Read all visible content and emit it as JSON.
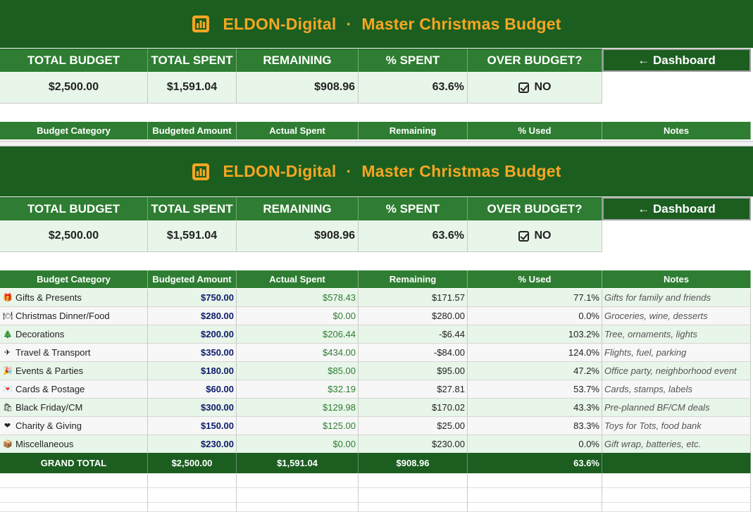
{
  "title": {
    "company": "ELDON-Digital",
    "separator": "·",
    "name": "Master Christmas Budget"
  },
  "kpi": {
    "headers": [
      "TOTAL BUDGET",
      "TOTAL SPENT",
      "REMAINING",
      "% SPENT",
      "OVER BUDGET?"
    ],
    "dashboard_label": "← Dashboard",
    "values": {
      "total_budget": "$2,500.00",
      "total_spent": "$1,591.04",
      "remaining": "$908.96",
      "pct_spent": "63.6%",
      "over_budget": "NO"
    }
  },
  "columns": [
    "Budget Category",
    "Budgeted Amount",
    "Actual Spent",
    "Remaining",
    "% Used",
    "Notes"
  ],
  "rows": [
    {
      "icon": "🎁",
      "category": "Gifts & Presents",
      "budgeted": "$750.00",
      "actual": "$578.43",
      "remaining": "$171.57",
      "pct": "77.1%",
      "notes": "Gifts for family and friends"
    },
    {
      "icon": "🍽",
      "category": "Christmas Dinner/Food",
      "budgeted": "$280.00",
      "actual": "$0.00",
      "remaining": "$280.00",
      "pct": "0.0%",
      "notes": "Groceries, wine, desserts"
    },
    {
      "icon": "🎄",
      "category": "Decorations",
      "budgeted": "$200.00",
      "actual": "$206.44",
      "remaining": "-$6.44",
      "pct": "103.2%",
      "notes": "Tree, ornaments, lights"
    },
    {
      "icon": "✈",
      "category": "Travel & Transport",
      "budgeted": "$350.00",
      "actual": "$434.00",
      "remaining": "-$84.00",
      "pct": "124.0%",
      "notes": "Flights, fuel, parking"
    },
    {
      "icon": "🎉",
      "category": "Events & Parties",
      "budgeted": "$180.00",
      "actual": "$85.00",
      "remaining": "$95.00",
      "pct": "47.2%",
      "notes": "Office party, neighborhood event"
    },
    {
      "icon": "💌",
      "category": "Cards & Postage",
      "budgeted": "$60.00",
      "actual": "$32.19",
      "remaining": "$27.81",
      "pct": "53.7%",
      "notes": "Cards, stamps, labels"
    },
    {
      "icon": "🛍",
      "category": "Black Friday/CM",
      "budgeted": "$300.00",
      "actual": "$129.98",
      "remaining": "$170.02",
      "pct": "43.3%",
      "notes": "Pre-planned BF/CM deals"
    },
    {
      "icon": "❤",
      "category": "Charity & Giving",
      "budgeted": "$150.00",
      "actual": "$125.00",
      "remaining": "$25.00",
      "pct": "83.3%",
      "notes": "Toys for Tots, food bank"
    },
    {
      "icon": "📦",
      "category": "Miscellaneous",
      "budgeted": "$230.00",
      "actual": "$0.00",
      "remaining": "$230.00",
      "pct": "0.0%",
      "notes": "Gift wrap, batteries, etc."
    }
  ],
  "total": {
    "label": "GRAND TOTAL",
    "budgeted": "$2,500.00",
    "actual": "$1,591.04",
    "remaining": "$908.96",
    "pct": "63.6%"
  },
  "colors": {
    "title_band": "#1b5e20",
    "header_green": "#2e7d32",
    "title_text": "#f5a623",
    "light_row": "#e8f5e9",
    "budget_text": "#0d1b6b",
    "actual_text": "#2e7d32"
  }
}
